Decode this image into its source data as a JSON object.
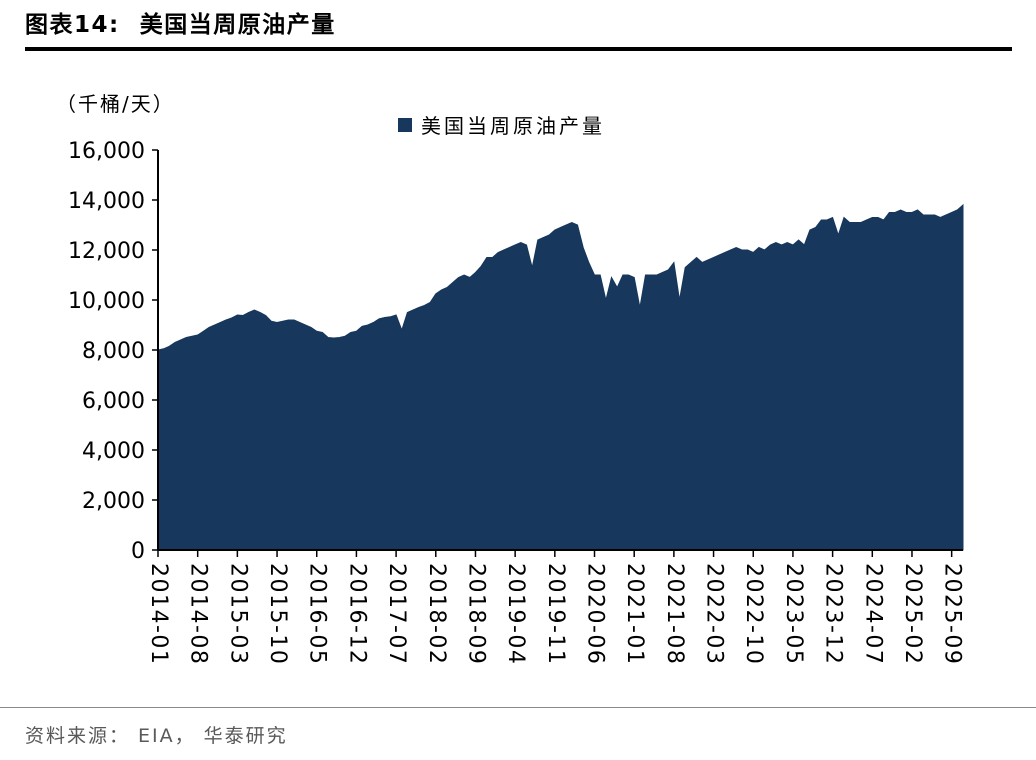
{
  "page": {
    "title_prefix": "图表14:",
    "title_text": "美国当周原油产量",
    "source_note": "资料来源： EIA， 华泰研究"
  },
  "chart_data": {
    "type": "area",
    "title": "美国当周原油产量",
    "unit_label": "（千桶/天）",
    "legend_label": "美国当周原油产量",
    "legend_position": "top-center",
    "grid": false,
    "series_color": "#17375C",
    "axis_color": "#000000",
    "x_start_month": "2014-01",
    "x_end_month": "2025-11",
    "frequency": "monthly approximation of weekly series",
    "ylim": [
      0,
      16000
    ],
    "y_ticks": [
      0,
      2000,
      4000,
      6000,
      8000,
      10000,
      12000,
      14000,
      16000
    ],
    "y_tick_labels": [
      "0",
      "2,000",
      "4,000",
      "6,000",
      "8,000",
      "10,000",
      "12,000",
      "14,000",
      "16,000"
    ],
    "x_tick_step": 7,
    "x_tick_labels": [
      "2014-01",
      "2014-08",
      "2015-03",
      "2015-10",
      "2016-05",
      "2016-12",
      "2017-07",
      "2018-02",
      "2018-09",
      "2019-04",
      "2019-11",
      "2020-06",
      "2021-01",
      "2021-08",
      "2022-03",
      "2022-10",
      "2023-05",
      "2023-12",
      "2024-07",
      "2025-02",
      "2025-09"
    ],
    "values": [
      8000,
      8050,
      8150,
      8300,
      8400,
      8500,
      8550,
      8600,
      8750,
      8900,
      9000,
      9100,
      9200,
      9280,
      9400,
      9380,
      9500,
      9600,
      9500,
      9380,
      9150,
      9100,
      9150,
      9200,
      9200,
      9100,
      9000,
      8900,
      8750,
      8700,
      8500,
      8480,
      8500,
      8550,
      8700,
      8750,
      8950,
      9000,
      9100,
      9250,
      9300,
      9330,
      9400,
      8800,
      9500,
      9600,
      9700,
      9780,
      9900,
      10250,
      10400,
      10500,
      10700,
      10900,
      11000,
      10900,
      11100,
      11350,
      11700,
      11700,
      11900,
      12000,
      12100,
      12200,
      12300,
      12200,
      11300,
      12400,
      12500,
      12600,
      12800,
      12900,
      13000,
      13100,
      13000,
      12100,
      11500,
      11000,
      11000,
      10000,
      10900,
      10500,
      11000,
      11000,
      10900,
      9700,
      11000,
      11000,
      11000,
      11100,
      11200,
      11500,
      10000,
      11300,
      11500,
      11700,
      11500,
      11600,
      11700,
      11800,
      11900,
      12000,
      12100,
      12000,
      12000,
      11900,
      12100,
      12000,
      12200,
      12300,
      12200,
      12300,
      12200,
      12400,
      12200,
      12800,
      12900,
      13200,
      13200,
      13300,
      12600,
      13300,
      13100,
      13100,
      13100,
      13200,
      13300,
      13300,
      13200,
      13500,
      13500,
      13600,
      13500,
      13500,
      13600,
      13400,
      13400,
      13400,
      13300,
      13400,
      13500,
      13600,
      13800
    ]
  }
}
